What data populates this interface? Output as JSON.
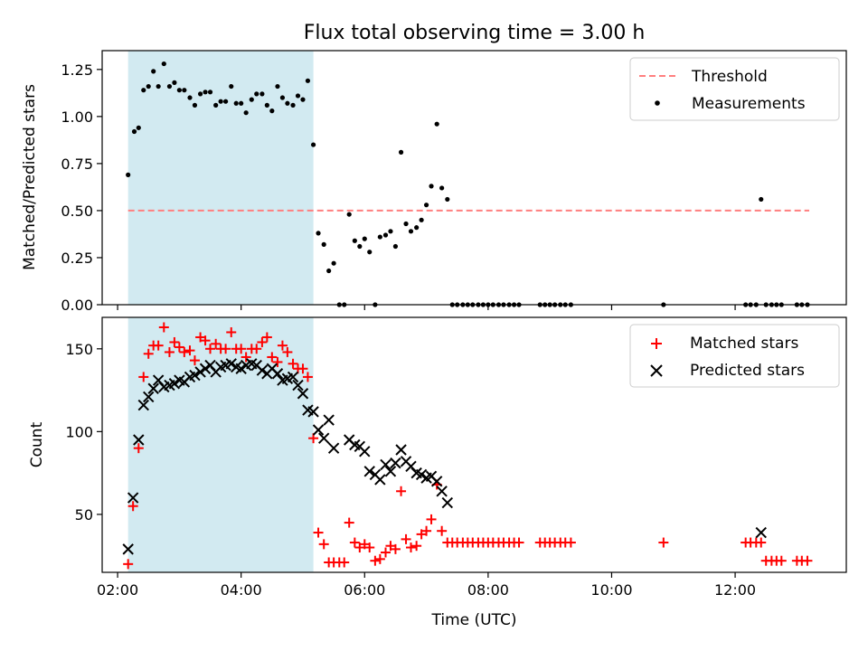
{
  "chart_data": {
    "type": "scatter",
    "title": "Flux total observing time = 3.00 h",
    "x_unit": "hours UTC",
    "xlim": [
      1.75,
      13.8
    ],
    "x_tick_labels": [
      "02:00",
      "04:00",
      "06:00",
      "08:00",
      "10:00",
      "12:00"
    ],
    "xlabel": "Time (UTC)",
    "shaded_interval": [
      2.17,
      5.17
    ],
    "shade_color": "#add8e6",
    "panels": [
      {
        "name": "ratio",
        "ylabel": "Matched/Predicted stars",
        "ylim": [
          0.0,
          1.35
        ],
        "y_tick_labels": [
          "0.00",
          "0.25",
          "0.50",
          "0.75",
          "1.00",
          "1.25"
        ],
        "legend_position": "top-right",
        "threshold": {
          "name": "Threshold",
          "value": 0.5,
          "x_range": [
            2.17,
            13.2
          ],
          "color": "#ff7f7f"
        },
        "series": [
          {
            "name": "Measurements",
            "marker": "dot",
            "color": "#000000",
            "x": [
              2.17,
              2.27,
              2.34,
              2.42,
              2.5,
              2.58,
              2.66,
              2.75,
              2.84,
              2.92,
              3.0,
              3.08,
              3.17,
              3.25,
              3.34,
              3.42,
              3.5,
              3.59,
              3.67,
              3.75,
              3.84,
              3.92,
              4.0,
              4.08,
              4.17,
              4.25,
              4.34,
              4.42,
              4.5,
              4.59,
              4.67,
              4.75,
              4.84,
              4.92,
              5.0,
              5.08,
              5.17,
              5.25,
              5.34,
              5.42,
              5.5,
              5.59,
              5.67,
              5.75,
              5.84,
              5.92,
              6.0,
              6.08,
              6.17,
              6.25,
              6.34,
              6.42,
              6.5,
              6.59,
              6.67,
              6.75,
              6.84,
              6.92,
              7.0,
              7.08,
              7.17,
              7.25,
              7.34,
              7.42,
              7.5,
              7.59,
              7.67,
              7.75,
              7.84,
              7.92,
              8.0,
              8.08,
              8.17,
              8.25,
              8.34,
              8.42,
              8.5,
              8.84,
              8.92,
              9.0,
              9.08,
              9.17,
              9.25,
              9.34,
              10.84,
              12.17,
              12.25,
              12.34,
              12.42,
              12.5,
              12.59,
              12.67,
              12.75,
              13.0,
              13.08,
              13.17
            ],
            "y": [
              0.69,
              0.92,
              0.94,
              1.14,
              1.16,
              1.24,
              1.16,
              1.28,
              1.16,
              1.18,
              1.14,
              1.14,
              1.1,
              1.06,
              1.12,
              1.13,
              1.13,
              1.06,
              1.08,
              1.08,
              1.16,
              1.07,
              1.07,
              1.02,
              1.09,
              1.12,
              1.12,
              1.06,
              1.03,
              1.16,
              1.1,
              1.07,
              1.06,
              1.11,
              1.09,
              1.19,
              0.85,
              0.38,
              0.32,
              0.18,
              0.22,
              0.0,
              0.0,
              0.48,
              0.34,
              0.31,
              0.35,
              0.28,
              0.0,
              0.36,
              0.37,
              0.39,
              0.31,
              0.81,
              0.43,
              0.39,
              0.41,
              0.45,
              0.53,
              0.63,
              0.96,
              0.62,
              0.56,
              0.0,
              0.0,
              0.0,
              0.0,
              0.0,
              0.0,
              0.0,
              0.0,
              0.0,
              0.0,
              0.0,
              0.0,
              0.0,
              0.0,
              0.0,
              0.0,
              0.0,
              0.0,
              0.0,
              0.0,
              0.0,
              0.0,
              0.0,
              0.0,
              0.0,
              0.56,
              0.0,
              0.0,
              0.0,
              0.0,
              0.0,
              0.0,
              0.0
            ]
          }
        ]
      },
      {
        "name": "counts",
        "ylabel": "Count",
        "ylim": [
          15,
          169
        ],
        "y_tick_labels": [
          "50",
          "100",
          "150"
        ],
        "legend_position": "top-right",
        "series": [
          {
            "name": "Matched stars",
            "marker": "plus",
            "color": "#ff0000",
            "x": [
              2.17,
              2.25,
              2.34,
              2.42,
              2.5,
              2.58,
              2.66,
              2.75,
              2.84,
              2.92,
              3.0,
              3.08,
              3.17,
              3.25,
              3.34,
              3.42,
              3.5,
              3.59,
              3.67,
              3.75,
              3.84,
              3.92,
              4.0,
              4.08,
              4.17,
              4.25,
              4.34,
              4.42,
              4.5,
              4.59,
              4.67,
              4.75,
              4.84,
              4.92,
              5.0,
              5.08,
              5.17,
              5.25,
              5.34,
              5.42,
              5.5,
              5.59,
              5.67,
              5.75,
              5.84,
              5.92,
              6.0,
              6.08,
              6.17,
              6.25,
              6.34,
              6.42,
              6.5,
              6.59,
              6.67,
              6.75,
              6.84,
              6.92,
              7.0,
              7.08,
              7.17,
              7.25,
              7.34,
              7.42,
              7.5,
              7.59,
              7.67,
              7.75,
              7.84,
              7.92,
              8.0,
              8.08,
              8.17,
              8.25,
              8.34,
              8.42,
              8.5,
              8.84,
              8.92,
              9.0,
              9.08,
              9.17,
              9.25,
              9.34,
              10.84,
              12.17,
              12.25,
              12.34,
              12.42,
              12.5,
              12.59,
              12.67,
              12.75,
              13.0,
              13.08,
              13.17
            ],
            "y": [
              20,
              55,
              90,
              133,
              147,
              152,
              152,
              163,
              148,
              154,
              151,
              148,
              149,
              143,
              157,
              155,
              150,
              153,
              150,
              150,
              160,
              150,
              150,
              145,
              150,
              150,
              154,
              157,
              145,
              142,
              152,
              148,
              141,
              138,
              138,
              133,
              96,
              39,
              32,
              21,
              21,
              21,
              21,
              45,
              33,
              30,
              32,
              30,
              22,
              23,
              27,
              31,
              29,
              64,
              35,
              30,
              31,
              38,
              40,
              47,
              68,
              40,
              33,
              33,
              33,
              33,
              33,
              33,
              33,
              33,
              33,
              33,
              33,
              33,
              33,
              33,
              33,
              33,
              33,
              33,
              33,
              33,
              33,
              33,
              33,
              33,
              33,
              33,
              33,
              22,
              22,
              22,
              22,
              22,
              22,
              22
            ]
          },
          {
            "name": "Predicted stars",
            "marker": "x",
            "color": "#000000",
            "x": [
              2.17,
              2.25,
              2.34,
              2.42,
              2.5,
              2.58,
              2.66,
              2.75,
              2.84,
              2.92,
              3.0,
              3.08,
              3.17,
              3.25,
              3.34,
              3.42,
              3.5,
              3.59,
              3.67,
              3.75,
              3.84,
              3.92,
              4.0,
              4.08,
              4.17,
              4.25,
              4.34,
              4.42,
              4.5,
              4.59,
              4.67,
              4.75,
              4.84,
              4.92,
              5.0,
              5.08,
              5.17,
              5.25,
              5.34,
              5.42,
              5.5,
              5.75,
              5.84,
              5.92,
              6.0,
              6.08,
              6.17,
              6.25,
              6.34,
              6.42,
              6.5,
              6.59,
              6.67,
              6.75,
              6.84,
              6.92,
              7.0,
              7.08,
              7.17,
              7.25,
              7.34,
              12.42
            ],
            "y": [
              29,
              60,
              95,
              116,
              121,
              126,
              131,
              127,
              128,
              129,
              131,
              130,
              133,
              134,
              136,
              138,
              140,
              136,
              139,
              140,
              141,
              139,
              138,
              140,
              141,
              140,
              137,
              135,
              138,
              135,
              131,
              132,
              133,
              128,
              123,
              113,
              112,
              101,
              96,
              107,
              90,
              95,
              92,
              91,
              88,
              76,
              74,
              71,
              80,
              76,
              81,
              89,
              82,
              79,
              75,
              74,
              72,
              73,
              70,
              64,
              57,
              39
            ]
          }
        ]
      }
    ]
  }
}
